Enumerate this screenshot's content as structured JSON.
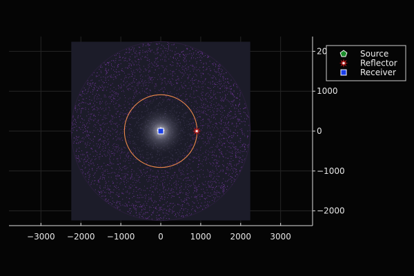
{
  "chart_data": {
    "type": "scatter",
    "title": "",
    "xlabel": "",
    "ylabel": "",
    "xlim": [
      -3800,
      3800
    ],
    "ylim": [
      -2370,
      2370
    ],
    "aspect": "equal",
    "grid": true,
    "x_ticks": [
      -3000,
      -2000,
      -1000,
      0,
      1000,
      2000,
      3000
    ],
    "y_ticks": [
      2000,
      1000,
      0,
      -1000,
      -2000
    ],
    "x_tick_labels": [
      "−3000",
      "−2000",
      "−1000",
      "0",
      "1000",
      "2000",
      "3000"
    ],
    "y_tick_labels": [
      "2000",
      "1000",
      "0",
      "−1000",
      "−2000"
    ],
    "heatmap": {
      "extent_x": [
        -2240,
        2240
      ],
      "extent_y": [
        -2240,
        2240
      ],
      "disk_radius": 2240,
      "background_color": "#1c1c29",
      "speckle_color": "#7a3aa8"
    },
    "ring": {
      "center": [
        0,
        0
      ],
      "radius": 910,
      "color": "#f08a4b"
    },
    "series": [
      {
        "name": "Source",
        "marker": "pentagon",
        "color": "#1a8c2a",
        "points": [
          [
            0,
            0
          ]
        ]
      },
      {
        "name": "Reflector",
        "marker": "star8",
        "color": "#ffffff",
        "points": [
          [
            900,
            0
          ]
        ]
      },
      {
        "name": "Receiver",
        "marker": "square",
        "color": "#1a3ee8",
        "points": [
          [
            0,
            0
          ]
        ]
      }
    ],
    "legend_position": "top-right"
  }
}
